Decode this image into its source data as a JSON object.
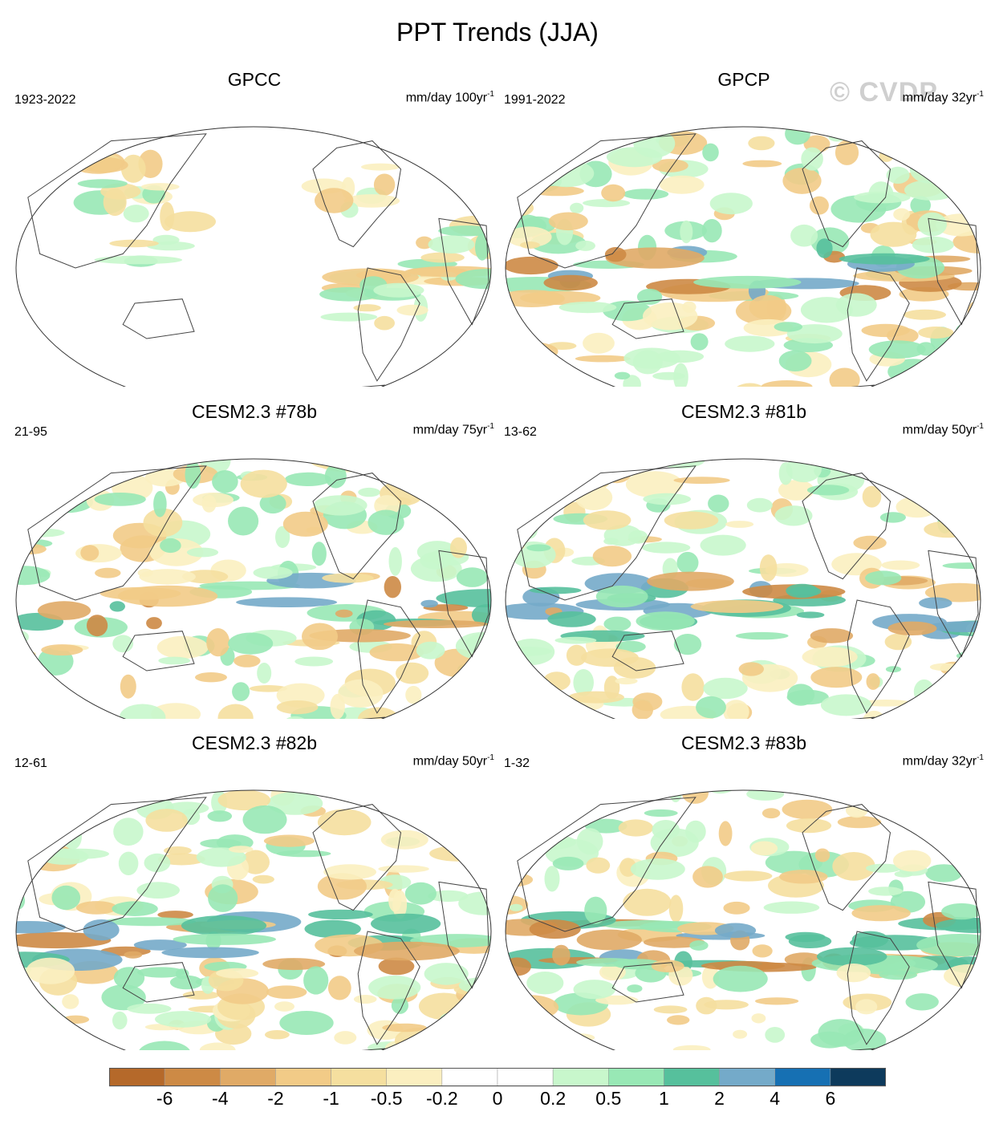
{
  "title": "PPT Trends (JJA)",
  "watermark": "© CVDP",
  "panels": [
    {
      "title": "GPCC",
      "period": "1923-2022",
      "units": "mm/day 100yr",
      "units_exp": "-1",
      "pattern": "gpcc"
    },
    {
      "title": "GPCP",
      "period": "1991-2022",
      "units": "mm/day 32yr",
      "units_exp": "-1",
      "pattern": "gpcp"
    },
    {
      "title": "CESM2.3 #78b",
      "period": "21-95",
      "units": "mm/day 75yr",
      "units_exp": "-1",
      "pattern": "m78"
    },
    {
      "title": "CESM2.3 #81b",
      "period": "13-62",
      "units": "mm/day 50yr",
      "units_exp": "-1",
      "pattern": "m81"
    },
    {
      "title": "CESM2.3 #82b",
      "period": "12-61",
      "units": "mm/day 50yr",
      "units_exp": "-1",
      "pattern": "m82"
    },
    {
      "title": "CESM2.3 #83b",
      "period": "1-32",
      "units": "mm/day 32yr",
      "units_exp": "-1",
      "pattern": "m83"
    }
  ],
  "colorbar": {
    "colors": [
      "#b5692a",
      "#cd8a45",
      "#e0aa66",
      "#f2cb87",
      "#f5df9f",
      "#fbefc0",
      "#ffffff",
      "#ffffff",
      "#c8f7cc",
      "#98e8b5",
      "#56c09c",
      "#74aac9",
      "#1670b3",
      "#0d3a5c"
    ],
    "labels": [
      "-6",
      "-4",
      "-2",
      "-1",
      "-0.5",
      "-0.2",
      "0",
      "0.2",
      "0.5",
      "1",
      "2",
      "4",
      "6"
    ]
  }
}
